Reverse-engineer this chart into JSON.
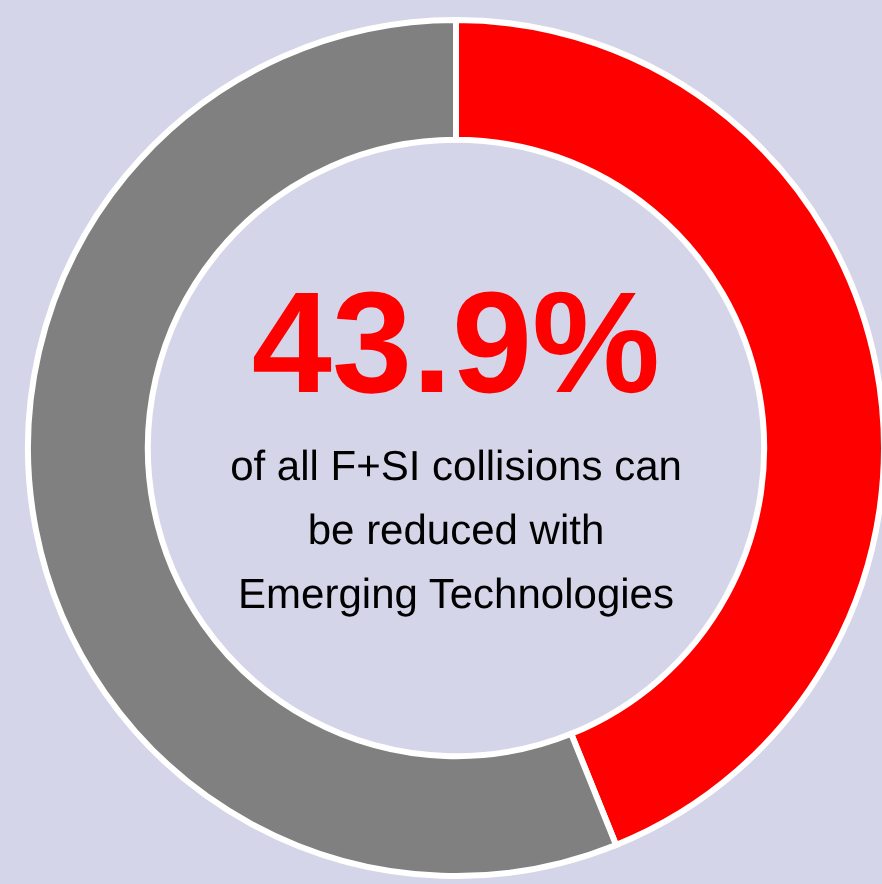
{
  "chart_data": {
    "type": "donut",
    "categories": [
      null,
      null
    ],
    "values": [
      43.9,
      56.1
    ],
    "colors": [
      "#ff0000",
      "#808080"
    ],
    "value_labels": [
      "43.9%",
      null
    ],
    "annotations": [
      "of all F+SI collisions can\nbe reduced with\nEmerging Technologies"
    ]
  }
}
